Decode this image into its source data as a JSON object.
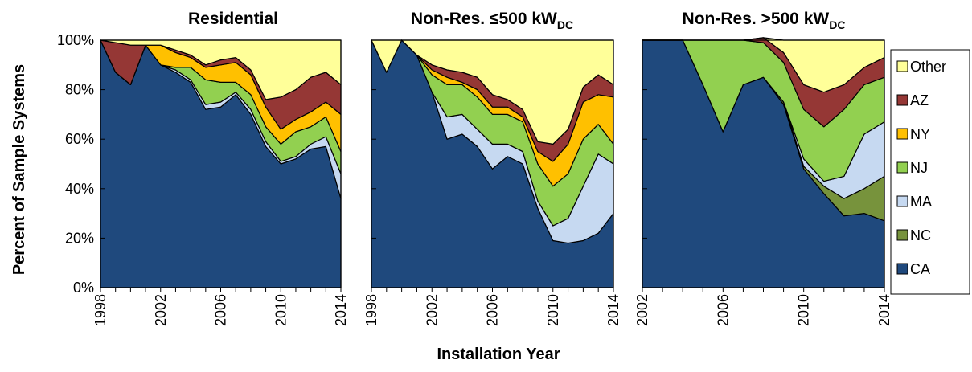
{
  "axes": {
    "ylabel": "Percent of Sample Systems",
    "xlabel": "Installation Year",
    "yticks": [
      "0%",
      "20%",
      "40%",
      "60%",
      "80%",
      "100%"
    ]
  },
  "legend": [
    {
      "label": "Other",
      "color": "#ffff99"
    },
    {
      "label": "AZ",
      "color": "#953735"
    },
    {
      "label": "NY",
      "color": "#ffc000"
    },
    {
      "label": "NJ",
      "color": "#92d050"
    },
    {
      "label": "MA",
      "color": "#c6d9f1"
    },
    {
      "label": "NC",
      "color": "#77933c"
    },
    {
      "label": "CA",
      "color": "#1f497d"
    }
  ],
  "chart_data": [
    {
      "type": "area",
      "title": "Residential",
      "title_sub": "",
      "xlabel": "Installation Year",
      "ylabel": "Percent of Sample Systems",
      "x": [
        1998,
        1999,
        2000,
        2001,
        2002,
        2003,
        2004,
        2005,
        2006,
        2007,
        2008,
        2009,
        2010,
        2011,
        2012,
        2013,
        2014
      ],
      "xticks": [
        "1998",
        "2002",
        "2006",
        "2010",
        "2014"
      ],
      "xlim": [
        1998,
        2014
      ],
      "ylim": [
        0,
        100
      ],
      "stacked": true,
      "series": [
        {
          "name": "CA",
          "values": [
            100,
            87,
            82,
            98,
            90,
            87,
            83,
            72,
            73,
            78,
            70,
            57,
            50,
            52,
            56,
            57,
            36
          ]
        },
        {
          "name": "NC",
          "values": [
            0,
            0,
            0,
            0,
            0,
            0,
            0,
            0,
            0,
            0,
            0,
            0,
            0,
            0,
            0,
            0,
            0
          ]
        },
        {
          "name": "MA",
          "values": [
            0,
            0,
            0,
            0,
            0,
            1,
            1,
            2,
            2,
            1,
            2,
            2,
            1,
            1,
            2,
            4,
            10
          ]
        },
        {
          "name": "NJ",
          "values": [
            0,
            0,
            0,
            0,
            0,
            1,
            5,
            10,
            8,
            4,
            6,
            6,
            7,
            10,
            7,
            8,
            9
          ]
        },
        {
          "name": "NY",
          "values": [
            0,
            0,
            0,
            0,
            8,
            6,
            4,
            5,
            7,
            8,
            8,
            8,
            6,
            5,
            6,
            6,
            15
          ]
        },
        {
          "name": "AZ",
          "values": [
            0,
            12,
            16,
            0,
            0,
            1,
            1,
            1,
            2,
            2,
            2,
            3,
            13,
            12,
            14,
            12,
            12
          ]
        },
        {
          "name": "Other",
          "values": [
            0,
            1,
            2,
            2,
            2,
            4,
            6,
            10,
            8,
            7,
            12,
            24,
            23,
            20,
            15,
            13,
            18
          ]
        }
      ]
    },
    {
      "type": "area",
      "title": "Non-Res. ≤500 kW",
      "title_sub": "DC",
      "xlabel": "Installation Year",
      "ylabel": "Percent of Sample Systems",
      "x": [
        1998,
        1999,
        2000,
        2001,
        2002,
        2003,
        2004,
        2005,
        2006,
        2007,
        2008,
        2009,
        2010,
        2011,
        2012,
        2013,
        2014
      ],
      "xticks": [
        "1998",
        "2002",
        "2006",
        "2010",
        "2014"
      ],
      "xlim": [
        1998,
        2014
      ],
      "ylim": [
        0,
        100
      ],
      "stacked": true,
      "series": [
        {
          "name": "CA",
          "values": [
            100,
            87,
            100,
            94,
            79,
            60,
            62,
            57,
            48,
            53,
            50,
            32,
            19,
            18,
            19,
            22,
            30
          ]
        },
        {
          "name": "NC",
          "values": [
            0,
            0,
            0,
            0,
            0,
            0,
            0,
            0,
            0,
            0,
            0,
            0,
            0,
            0,
            0,
            0,
            0
          ]
        },
        {
          "name": "MA",
          "values": [
            0,
            0,
            0,
            0,
            0,
            9,
            8,
            7,
            10,
            5,
            5,
            3,
            6,
            10,
            22,
            32,
            20
          ]
        },
        {
          "name": "NJ",
          "values": [
            0,
            0,
            0,
            0,
            7,
            13,
            12,
            13,
            12,
            12,
            12,
            15,
            16,
            18,
            19,
            12,
            8
          ]
        },
        {
          "name": "NY",
          "values": [
            0,
            0,
            0,
            0,
            2,
            3,
            1,
            3,
            3,
            3,
            2,
            5,
            10,
            12,
            15,
            12,
            19
          ]
        },
        {
          "name": "AZ",
          "values": [
            0,
            0,
            0,
            0,
            2,
            3,
            4,
            5,
            5,
            3,
            3,
            4,
            7,
            6,
            6,
            8,
            5
          ]
        },
        {
          "name": "Other",
          "values": [
            0,
            13,
            0,
            6,
            10,
            12,
            13,
            15,
            22,
            24,
            28,
            41,
            42,
            36,
            19,
            14,
            18
          ]
        }
      ]
    },
    {
      "type": "area",
      "title": "Non-Res. >500 kW",
      "title_sub": "DC",
      "xlabel": "Installation Year",
      "ylabel": "Percent of Sample Systems",
      "x": [
        2002,
        2003,
        2004,
        2005,
        2006,
        2007,
        2008,
        2009,
        2010,
        2011,
        2012,
        2013,
        2014
      ],
      "xticks": [
        "2002",
        "2006",
        "2010",
        "2014"
      ],
      "xlim": [
        2002,
        2014
      ],
      "ylim": [
        0,
        100
      ],
      "stacked": true,
      "series": [
        {
          "name": "CA",
          "values": [
            100,
            100,
            100,
            82,
            63,
            82,
            85,
            74,
            48,
            38,
            29,
            30,
            27
          ]
        },
        {
          "name": "NC",
          "values": [
            0,
            0,
            0,
            0,
            0,
            0,
            0,
            1,
            1,
            3,
            7,
            10,
            18
          ]
        },
        {
          "name": "MA",
          "values": [
            0,
            0,
            0,
            0,
            0,
            0,
            0,
            0,
            3,
            2,
            9,
            22,
            22
          ]
        },
        {
          "name": "NJ",
          "values": [
            0,
            0,
            0,
            18,
            37,
            18,
            14,
            16,
            20,
            22,
            27,
            20,
            18
          ]
        },
        {
          "name": "NY",
          "values": [
            0,
            0,
            0,
            0,
            0,
            0,
            0,
            0,
            0,
            0,
            0,
            0,
            0
          ]
        },
        {
          "name": "AZ",
          "values": [
            0,
            0,
            0,
            0,
            0,
            0,
            2,
            4,
            10,
            14,
            10,
            7,
            8
          ]
        },
        {
          "name": "Other",
          "values": [
            0,
            0,
            0,
            0,
            0,
            0,
            0,
            5,
            18,
            21,
            18,
            11,
            7
          ]
        }
      ]
    }
  ]
}
